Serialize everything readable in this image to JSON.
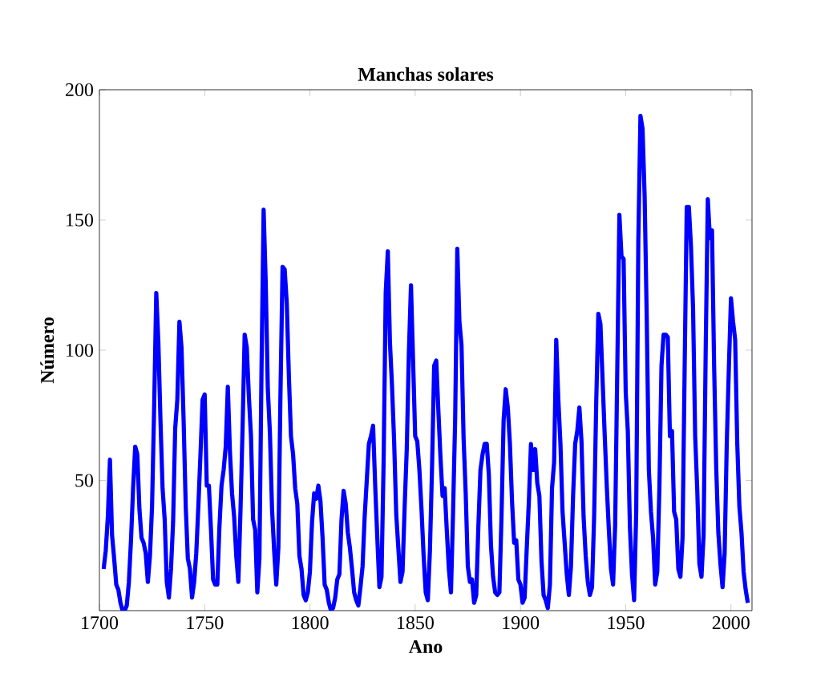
{
  "chart_data": {
    "type": "line",
    "title": "Manchas solares",
    "xlabel": "Ano",
    "ylabel": "Número",
    "xlim": [
      1700,
      2010
    ],
    "xticks": [
      1700,
      1750,
      1800,
      1850,
      1900,
      1950,
      2000
    ],
    "ylim": [
      0,
      200
    ],
    "yticks": [
      50,
      100,
      150,
      200
    ],
    "grid": false,
    "line_style": "solid",
    "series": [
      {
        "color": "#0000ff",
        "x": [
          1702,
          1703,
          1704,
          1705,
          1706,
          1707,
          1708,
          1709,
          1710,
          1711,
          1712,
          1713,
          1714,
          1715,
          1716,
          1717,
          1718,
          1719,
          1720,
          1721,
          1722,
          1723,
          1724,
          1725,
          1726,
          1727,
          1728,
          1729,
          1730,
          1731,
          1732,
          1733,
          1734,
          1735,
          1736,
          1737,
          1738,
          1739,
          1740,
          1741,
          1742,
          1743,
          1744,
          1745,
          1746,
          1747,
          1748,
          1749,
          1750,
          1751,
          1752,
          1753,
          1754,
          1755,
          1756,
          1757,
          1758,
          1759,
          1760,
          1761,
          1762,
          1763,
          1764,
          1765,
          1766,
          1767,
          1768,
          1769,
          1770,
          1771,
          1772,
          1773,
          1774,
          1775,
          1776,
          1777,
          1778,
          1779,
          1780,
          1781,
          1782,
          1783,
          1784,
          1785,
          1786,
          1787,
          1788,
          1789,
          1790,
          1791,
          1792,
          1793,
          1794,
          1795,
          1796,
          1797,
          1798,
          1799,
          1800,
          1801,
          1802,
          1803,
          1804,
          1805,
          1806,
          1807,
          1808,
          1809,
          1810,
          1811,
          1812,
          1813,
          1814,
          1815,
          1816,
          1817,
          1818,
          1819,
          1820,
          1821,
          1822,
          1823,
          1824,
          1825,
          1826,
          1827,
          1828,
          1829,
          1830,
          1831,
          1832,
          1833,
          1834,
          1835,
          1836,
          1837,
          1838,
          1839,
          1840,
          1841,
          1842,
          1843,
          1844,
          1845,
          1846,
          1847,
          1848,
          1849,
          1850,
          1851,
          1852,
          1853,
          1854,
          1855,
          1856,
          1857,
          1858,
          1859,
          1860,
          1861,
          1862,
          1863,
          1864,
          1865,
          1866,
          1867,
          1868,
          1869,
          1870,
          1871,
          1872,
          1873,
          1874,
          1875,
          1876,
          1877,
          1878,
          1879,
          1880,
          1881,
          1882,
          1883,
          1884,
          1885,
          1886,
          1887,
          1888,
          1889,
          1890,
          1891,
          1892,
          1893,
          1894,
          1895,
          1896,
          1897,
          1898,
          1899,
          1900,
          1901,
          1902,
          1903,
          1904,
          1905,
          1906,
          1907,
          1908,
          1909,
          1910,
          1911,
          1912,
          1913,
          1914,
          1915,
          1916,
          1917,
          1918,
          1919,
          1920,
          1921,
          1922,
          1923,
          1924,
          1925,
          1926,
          1927,
          1928,
          1929,
          1930,
          1931,
          1932,
          1933,
          1934,
          1935,
          1936,
          1937,
          1938,
          1939,
          1940,
          1941,
          1942,
          1943,
          1944,
          1945,
          1946,
          1947,
          1948,
          1949,
          1950,
          1951,
          1952,
          1953,
          1954,
          1955,
          1956,
          1957,
          1958,
          1959,
          1960,
          1961,
          1962,
          1963,
          1964,
          1965,
          1966,
          1967,
          1968,
          1969,
          1970,
          1971,
          1972,
          1973,
          1974,
          1975,
          1976,
          1977,
          1978,
          1979,
          1980,
          1981,
          1982,
          1983,
          1984,
          1985,
          1986,
          1987,
          1988,
          1989,
          1990,
          1991,
          1992,
          1993,
          1994,
          1995,
          1996,
          1997,
          1998,
          1999,
          2000,
          2001,
          2002,
          2003,
          2004,
          2005,
          2006,
          2007,
          2008
        ],
        "values": [
          16,
          23,
          36,
          58,
          29,
          20,
          10,
          8,
          3,
          0,
          0,
          2,
          11,
          27,
          47,
          63,
          60,
          39,
          28,
          26,
          22,
          11,
          21,
          40,
          78,
          122,
          103,
          73,
          47,
          35,
          11,
          5,
          16,
          34,
          70,
          81,
          111,
          101,
          73,
          40,
          20,
          16,
          5,
          11,
          22,
          40,
          60,
          81,
          83,
          48,
          48,
          31,
          12,
          10,
          10,
          32,
          48,
          54,
          63,
          86,
          61,
          45,
          36,
          21,
          11,
          38,
          70,
          106,
          101,
          82,
          67,
          35,
          31,
          7,
          20,
          93,
          154,
          126,
          85,
          68,
          39,
          23,
          10,
          24,
          83,
          132,
          131,
          118,
          90,
          67,
          60,
          47,
          41,
          21,
          16,
          6,
          4,
          7,
          15,
          34,
          45,
          43,
          48,
          42,
          28,
          10,
          8,
          3,
          0,
          1,
          5,
          12,
          14,
          35,
          46,
          41,
          30,
          24,
          16,
          7,
          4,
          2,
          9,
          17,
          36,
          50,
          64,
          67,
          71,
          48,
          28,
          9,
          13,
          57,
          122,
          138,
          103,
          86,
          65,
          37,
          24,
          11,
          15,
          40,
          62,
          99,
          125,
          96,
          67,
          65,
          54,
          39,
          21,
          7,
          4,
          23,
          55,
          94,
          96,
          77,
          59,
          44,
          47,
          31,
          16,
          7,
          38,
          74,
          139,
          111,
          102,
          66,
          45,
          17,
          11,
          12,
          3,
          6,
          32,
          54,
          60,
          64,
          64,
          52,
          25,
          13,
          7,
          6,
          7,
          36,
          73,
          85,
          78,
          64,
          42,
          26,
          27,
          12,
          10,
          3,
          5,
          24,
          42,
          64,
          54,
          62,
          49,
          44,
          19,
          6,
          4,
          1,
          10,
          47,
          57,
          104,
          81,
          64,
          38,
          26,
          14,
          6,
          17,
          44,
          64,
          69,
          78,
          65,
          36,
          21,
          11,
          6,
          9,
          36,
          80,
          114,
          110,
          89,
          68,
          48,
          31,
          16,
          10,
          33,
          93,
          152,
          136,
          135,
          84,
          69,
          32,
          14,
          4,
          38,
          142,
          190,
          185,
          159,
          112,
          54,
          38,
          28,
          10,
          15,
          47,
          94,
          106,
          106,
          105,
          67,
          69,
          38,
          35,
          16,
          13,
          28,
          93,
          155,
          155,
          140,
          116,
          67,
          46,
          18,
          13,
          29,
          100,
          158,
          143,
          146,
          94,
          55,
          30,
          18,
          9,
          22,
          64,
          93,
          120,
          111,
          104,
          64,
          40,
          30,
          15,
          8,
          3
        ]
      }
    ]
  }
}
